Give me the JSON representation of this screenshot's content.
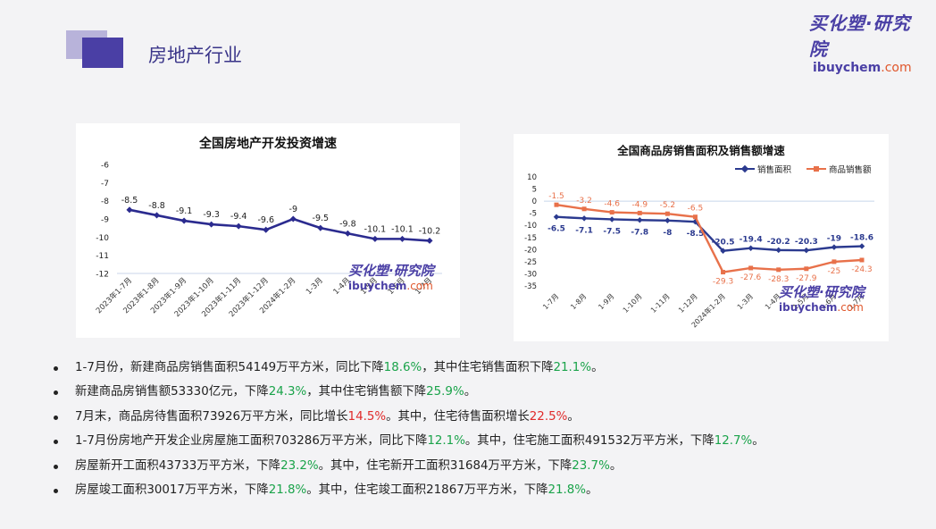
{
  "header": {
    "title": "房地产行业",
    "logo_cn": "买化塑·研究院",
    "logo_en_main": "ibuychem",
    "logo_en_dot": ".com"
  },
  "watermark": {
    "cn": "买化塑·研究院",
    "en_main": "ibuychem",
    "en_dot": ".com"
  },
  "chart_data": [
    {
      "type": "line",
      "title": "全国房地产开发投资增速",
      "categories": [
        "2023年1-7月",
        "2023年1-8月",
        "2023年1-9月",
        "2023年1-10月",
        "2023年1-11月",
        "2023年1-12月",
        "2024年1-2月",
        "1-3月",
        "1-4月",
        "1-5月",
        "1-6月",
        "1-7月"
      ],
      "series": [
        {
          "values": [
            -8.5,
            -8.8,
            -9.1,
            -9.3,
            -9.4,
            -9.6,
            -9,
            -9.5,
            -9.8,
            -10.1,
            -10.1,
            -10.2
          ]
        }
      ],
      "yticks": [
        "-6",
        "-7",
        "-8",
        "-9",
        "-10",
        "-11",
        "-12"
      ],
      "ylim": [
        -12,
        -6
      ],
      "colors": {
        "line": "#2b2b8f",
        "marker": "#2b2b8f"
      },
      "grid": false,
      "legend": false
    },
    {
      "type": "line",
      "title": "全国商品房销售面积及销售额增速",
      "categories": [
        "1-7月",
        "1-8月",
        "1-9月",
        "1-10月",
        "1-11月",
        "1-12月",
        "2024年1-2月",
        "1-3月",
        "1-4月",
        "1-5月",
        "1-6月",
        "1-7月"
      ],
      "series": [
        {
          "name": "销售面积",
          "values": [
            -6.5,
            -7.1,
            -7.5,
            -7.8,
            -8,
            -8.5,
            -20.5,
            -19.4,
            -20.2,
            -20.3,
            -19,
            -18.6
          ],
          "color": "#2b3a8f",
          "marker": "diamond"
        },
        {
          "name": "商品销售额",
          "values": [
            -1.5,
            -3.2,
            -4.6,
            -4.9,
            -5.2,
            -6.5,
            -29.3,
            -27.6,
            -28.3,
            -27.9,
            -25,
            -24.3
          ],
          "color": "#e8714a",
          "marker": "square"
        }
      ],
      "yticks": [
        "10",
        "5",
        "0",
        "-5",
        "-10",
        "-15",
        "-20",
        "-25",
        "-30",
        "-35"
      ],
      "ylim": [
        -35,
        10
      ],
      "legend": "top-right",
      "grid": false
    }
  ],
  "bullets": [
    [
      {
        "t": "1-7月份，新建商品房销售面积54149万平方米，同比下降"
      },
      {
        "t": "18.6%",
        "c": "g"
      },
      {
        "t": "，其中住宅销售面积下降"
      },
      {
        "t": "21.1%",
        "c": "g"
      },
      {
        "t": "。"
      }
    ],
    [
      {
        "t": "新建商品房销售额53330亿元，下降"
      },
      {
        "t": "24.3%",
        "c": "g"
      },
      {
        "t": "，其中住宅销售额下降"
      },
      {
        "t": "25.9%",
        "c": "g"
      },
      {
        "t": "。"
      }
    ],
    [
      {
        "t": "7月末，商品房待售面积73926万平方米，同比增长"
      },
      {
        "t": "14.5%",
        "c": "r"
      },
      {
        "t": "。其中，住宅待售面积增长"
      },
      {
        "t": "22.5%",
        "c": "r"
      },
      {
        "t": "。"
      }
    ],
    [
      {
        "t": "1-7月份房地产开发企业房屋施工面积703286万平方米，同比下降"
      },
      {
        "t": "12.1%",
        "c": "g"
      },
      {
        "t": "。其中，住宅施工面积491532万平方米，下降"
      },
      {
        "t": "12.7%",
        "c": "g"
      },
      {
        "t": "。"
      }
    ],
    [
      {
        "t": "房屋新开工面积43733万平方米，下降"
      },
      {
        "t": "23.2%",
        "c": "g"
      },
      {
        "t": "。其中，住宅新开工面积31684万平方米，下降"
      },
      {
        "t": "23.7%",
        "c": "g"
      },
      {
        "t": "。"
      }
    ],
    [
      {
        "t": "房屋竣工面积30017万平方米，下降"
      },
      {
        "t": "21.8%",
        "c": "g"
      },
      {
        "t": "。其中，住宅竣工面积21867万平方米，下降"
      },
      {
        "t": "21.8%",
        "c": "g"
      },
      {
        "t": "。"
      }
    ]
  ]
}
